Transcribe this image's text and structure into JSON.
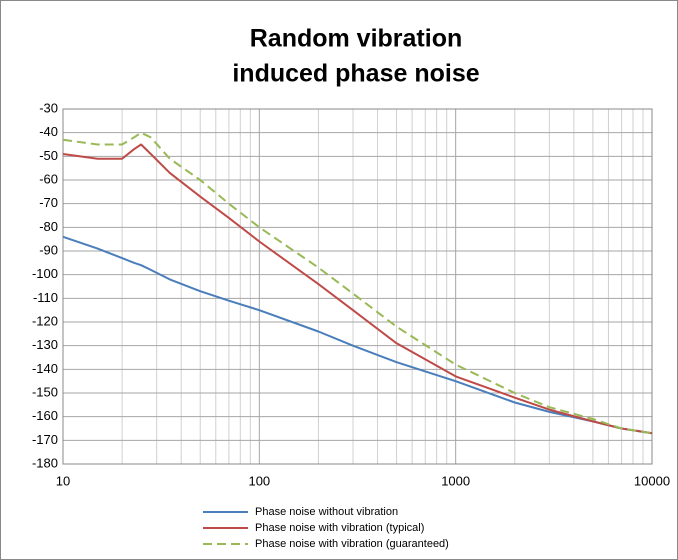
{
  "chart_data": {
    "type": "line",
    "title": [
      "Random vibration",
      "induced phase noise"
    ],
    "x": [
      10,
      15,
      20,
      23,
      25,
      28,
      35,
      50,
      70,
      100,
      200,
      300,
      500,
      1000,
      2000,
      3000,
      5000,
      7000,
      10000
    ],
    "series": [
      {
        "name": "Phase noise without vibration",
        "color": "#4a7ebb",
        "dash": false,
        "values": [
          -84,
          -89,
          -93,
          -95,
          -96,
          -98,
          -102,
          -107,
          -111,
          -115,
          -124,
          -130,
          -137,
          -145,
          -154,
          -158,
          -162,
          -165,
          -167
        ]
      },
      {
        "name": "Phase noise with vibration (typical)",
        "color": "#be4b48",
        "dash": false,
        "values": [
          -49,
          -51,
          -51,
          -47,
          -45,
          -49,
          -57,
          -67,
          -76,
          -86,
          -104,
          -115,
          -129,
          -143,
          -152,
          -157,
          -162,
          -165,
          -167
        ]
      },
      {
        "name": "Phase noise with vibration (guaranteed)",
        "color": "#98b954",
        "dash": true,
        "values": [
          -43,
          -45,
          -45,
          -42,
          -40,
          -42,
          -51,
          -60,
          -70,
          -80,
          -97,
          -108,
          -122,
          -138,
          -150,
          -156,
          -161,
          -165,
          -167
        ]
      }
    ],
    "xlim": [
      10,
      10000
    ],
    "xticks": [
      10,
      100,
      1000,
      10000
    ],
    "xlog": true,
    "ylim": [
      -180,
      -30
    ],
    "yticks": [
      -180,
      -170,
      -160,
      -150,
      -140,
      -130,
      -120,
      -110,
      -100,
      -90,
      -80,
      -70,
      -60,
      -50,
      -40,
      -30
    ],
    "grid": true,
    "legend": "bottom"
  }
}
